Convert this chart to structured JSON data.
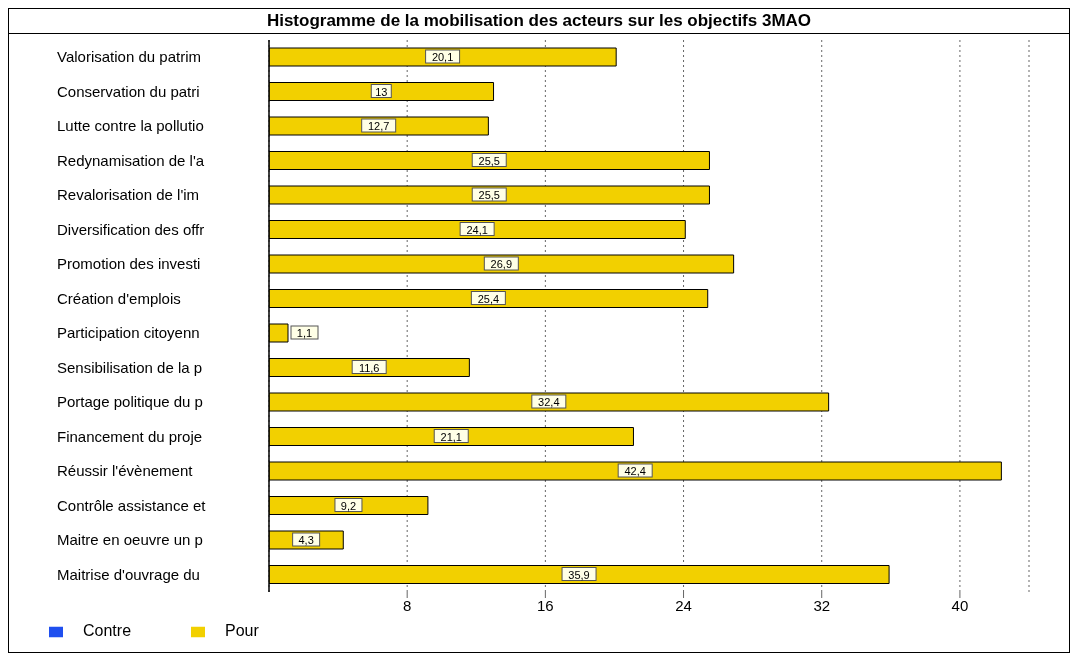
{
  "chart_data": {
    "type": "bar",
    "orientation": "horizontal",
    "title": "Histogramme de la mobilisation des acteurs sur les objectifs 3MAO",
    "categories": [
      "Valorisation du patrim",
      "Conservation du patri",
      "Lutte contre la pollutio",
      "Redynamisation de l'a",
      "Revalorisation de l'im",
      "Diversification des offr",
      "Promotion des investi",
      "Création d'emplois",
      "Participation citoyenn",
      "Sensibilisation de la p",
      "Portage politique du p",
      "Financement du proje",
      "Réussir l'évènement",
      "Contrôle assistance et",
      "Maitre en oeuvre un p",
      "Maitrise d'ouvrage du"
    ],
    "series": [
      {
        "name": "Pour",
        "color": "#f2d000",
        "values": [
          20.1,
          13,
          12.7,
          25.5,
          25.5,
          24.1,
          26.9,
          25.4,
          1.1,
          11.6,
          32.4,
          21.1,
          42.4,
          9.2,
          4.3,
          35.9
        ],
        "value_labels": [
          "20,1",
          "13",
          "12,7",
          "25,5",
          "25,5",
          "24,1",
          "26,9",
          "25,4",
          "1,1",
          "11,6",
          "32,4",
          "21,1",
          "42,4",
          "9,2",
          "4,3",
          "35,9"
        ]
      },
      {
        "name": "Contre",
        "color": "#1f4fef",
        "values": [
          0,
          0,
          0,
          0,
          0,
          0,
          0,
          0,
          0,
          0,
          0,
          0,
          0,
          0,
          0,
          0
        ]
      }
    ],
    "xlim": [
      0,
      44
    ],
    "xticks": [
      8,
      16,
      24,
      32,
      40
    ],
    "grid": "x",
    "legend": "bottom left"
  }
}
